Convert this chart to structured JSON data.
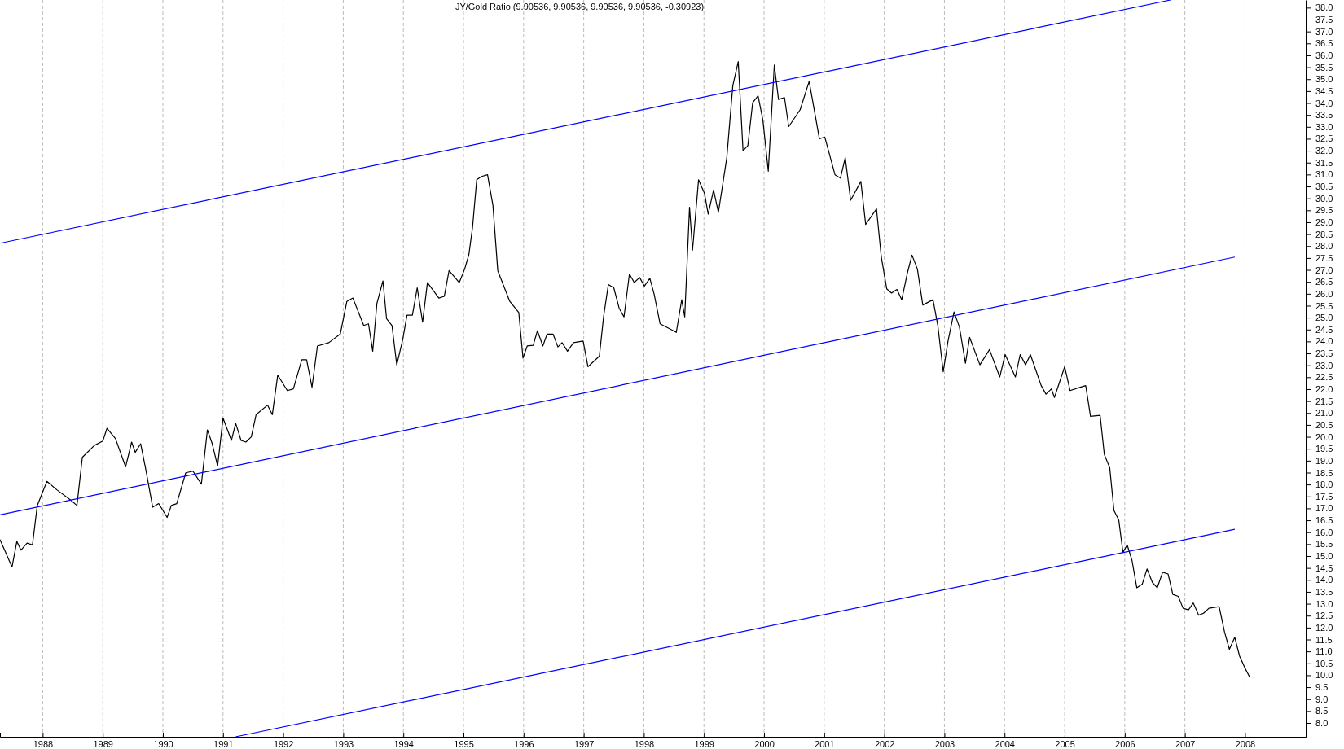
{
  "chart_data": {
    "type": "line",
    "title": "JY/Gold Ratio (9.90536, 9.90536, 9.90536, 9.90536, -0.30923)",
    "xlim": [
      1987.29,
      2009.01
    ],
    "ylim": [
      7.42,
      38.32
    ],
    "xticks": [
      1988,
      1989,
      1990,
      1991,
      1992,
      1993,
      1994,
      1995,
      1996,
      1997,
      1998,
      1999,
      2000,
      2001,
      2002,
      2003,
      2004,
      2005,
      2006,
      2007,
      2008
    ],
    "yticks": [
      {
        "value": 8,
        "label": "8.0"
      },
      {
        "value": 8.5,
        "label": "8.5"
      },
      {
        "value": 9,
        "label": "9.0"
      },
      {
        "value": 9.5,
        "label": "9.5"
      },
      {
        "value": 10,
        "label": "10.0"
      },
      {
        "value": 10.5,
        "label": "10.5"
      },
      {
        "value": 11,
        "label": "11.0"
      },
      {
        "value": 11.5,
        "label": "11.5"
      },
      {
        "value": 12,
        "label": "12.0"
      },
      {
        "value": 12.5,
        "label": "12.5"
      },
      {
        "value": 13,
        "label": "13.0"
      },
      {
        "value": 13.5,
        "label": "13.5"
      },
      {
        "value": 14,
        "label": "14.0"
      },
      {
        "value": 14.5,
        "label": "14.5"
      },
      {
        "value": 15,
        "label": "15.0"
      },
      {
        "value": 15.5,
        "label": "15.5"
      },
      {
        "value": 16,
        "label": "16.0"
      },
      {
        "value": 16.5,
        "label": "16.5"
      },
      {
        "value": 17,
        "label": "17.0"
      },
      {
        "value": 17.5,
        "label": "17.5"
      },
      {
        "value": 18,
        "label": "18.0"
      },
      {
        "value": 18.5,
        "label": "18.5"
      },
      {
        "value": 19,
        "label": "19.0"
      },
      {
        "value": 19.5,
        "label": "19.5"
      },
      {
        "value": 20,
        "label": "20.0"
      },
      {
        "value": 20.5,
        "label": "20.5"
      },
      {
        "value": 21,
        "label": "21.0"
      },
      {
        "value": 21.5,
        "label": "21.5"
      },
      {
        "value": 22,
        "label": "22.0"
      },
      {
        "value": 22.5,
        "label": "22.5"
      },
      {
        "value": 23,
        "label": "23.0"
      },
      {
        "value": 23.5,
        "label": "23.5"
      },
      {
        "value": 24,
        "label": "24.0"
      },
      {
        "value": 24.5,
        "label": "24.5"
      },
      {
        "value": 25,
        "label": "25.0"
      },
      {
        "value": 25.5,
        "label": "25.5"
      },
      {
        "value": 26,
        "label": "26.0"
      },
      {
        "value": 26.5,
        "label": "26.5"
      },
      {
        "value": 27,
        "label": "27.0"
      },
      {
        "value": 27.5,
        "label": "27.5"
      },
      {
        "value": 28,
        "label": "28.0"
      },
      {
        "value": 28.5,
        "label": "28.5"
      },
      {
        "value": 29,
        "label": "29.0"
      },
      {
        "value": 29.5,
        "label": "29.5"
      },
      {
        "value": 30,
        "label": "30.0"
      },
      {
        "value": 30.5,
        "label": "30.5"
      },
      {
        "value": 31,
        "label": "31.0"
      },
      {
        "value": 31.5,
        "label": "31.5"
      },
      {
        "value": 32,
        "label": "32.0"
      },
      {
        "value": 32.5,
        "label": "32.5"
      },
      {
        "value": 33,
        "label": "33.0"
      },
      {
        "value": 33.5,
        "label": "33.5"
      },
      {
        "value": 34,
        "label": "34.0"
      },
      {
        "value": 34.5,
        "label": "34.5"
      },
      {
        "value": 35,
        "label": "35.0"
      },
      {
        "value": 35.5,
        "label": "35.5"
      },
      {
        "value": 36,
        "label": "36.0"
      },
      {
        "value": 36.5,
        "label": "36.5"
      },
      {
        "value": 37,
        "label": "37.0"
      },
      {
        "value": 37.5,
        "label": "37.5"
      },
      {
        "value": 38,
        "label": "38.0"
      }
    ],
    "grid": "x",
    "marker": "none",
    "line_style": "solid",
    "series": [
      {
        "color": "#000000",
        "x": [
          1987.29,
          1987.49,
          1987.57,
          1987.64,
          1987.74,
          1987.83,
          1987.91,
          1988.07,
          1988.24,
          1988.47,
          1988.57,
          1988.66,
          1988.86,
          1989.0,
          1989.07,
          1989.21,
          1989.38,
          1989.48,
          1989.54,
          1989.63,
          1989.71,
          1989.83,
          1989.93,
          1990.07,
          1990.14,
          1990.23,
          1990.38,
          1990.5,
          1990.64,
          1990.74,
          1990.82,
          1990.91,
          1991.0,
          1991.14,
          1991.21,
          1991.3,
          1991.38,
          1991.47,
          1991.55,
          1991.74,
          1991.82,
          1991.91,
          1992.07,
          1992.17,
          1992.31,
          1992.39,
          1992.48,
          1992.57,
          1992.76,
          1992.95,
          1993.06,
          1993.16,
          1993.34,
          1993.42,
          1993.49,
          1993.56,
          1993.66,
          1993.72,
          1993.81,
          1993.89,
          1993.99,
          1994.06,
          1994.15,
          1994.23,
          1994.32,
          1994.4,
          1994.59,
          1994.68,
          1994.76,
          1994.93,
          1995.02,
          1995.09,
          1995.15,
          1995.22,
          1995.3,
          1995.4,
          1995.49,
          1995.57,
          1995.77,
          1995.92,
          1995.99,
          1996.06,
          1996.16,
          1996.23,
          1996.32,
          1996.39,
          1996.49,
          1996.57,
          1996.64,
          1996.73,
          1996.83,
          1996.99,
          1997.07,
          1997.26,
          1997.33,
          1997.41,
          1997.5,
          1997.59,
          1997.67,
          1997.76,
          1997.84,
          1997.93,
          1998.01,
          1998.1,
          1998.17,
          1998.27,
          1998.46,
          1998.54,
          1998.63,
          1998.68,
          1998.76,
          1998.81,
          1998.91,
          1999.01,
          1999.07,
          1999.16,
          1999.24,
          1999.38,
          1999.48,
          1999.57,
          1999.65,
          1999.73,
          1999.81,
          1999.9,
          1999.98,
          2000.07,
          2000.17,
          2000.24,
          2000.34,
          2000.41,
          2000.6,
          2000.75,
          2000.92,
          2001.01,
          2001.18,
          2001.27,
          2001.35,
          2001.44,
          2001.61,
          2001.69,
          2001.87,
          2001.95,
          2002.04,
          2002.12,
          2002.21,
          2002.29,
          2002.38,
          2002.46,
          2002.55,
          2002.64,
          2002.81,
          2002.89,
          2002.98,
          2003.06,
          2003.16,
          2003.25,
          2003.35,
          2003.42,
          2003.59,
          2003.75,
          2003.92,
          2004.01,
          2004.18,
          2004.26,
          2004.35,
          2004.43,
          2004.61,
          2004.69,
          2004.78,
          2004.83,
          2005.0,
          2005.09,
          2005.26,
          2005.35,
          2005.43,
          2005.59,
          2005.66,
          2005.75,
          2005.82,
          2005.9,
          2005.97,
          2006.04,
          2006.12,
          2006.2,
          2006.29,
          2006.37,
          2006.46,
          2006.54,
          2006.63,
          2006.72,
          2006.8,
          2006.89,
          2006.97,
          2007.06,
          2007.14,
          2007.23,
          2007.31,
          2007.4,
          2007.57,
          2007.66,
          2007.74,
          2007.83,
          2007.91,
          2008.0,
          2008.08
        ],
        "values": [
          15.69,
          14.54,
          15.61,
          15.25,
          15.54,
          15.47,
          17.12,
          18.13,
          17.77,
          17.34,
          17.12,
          19.14,
          19.64,
          19.82,
          20.36,
          19.93,
          18.74,
          19.78,
          19.35,
          19.71,
          18.7,
          17.05,
          17.2,
          16.62,
          17.12,
          17.2,
          18.49,
          18.56,
          18.02,
          20.29,
          19.71,
          18.78,
          20.79,
          19.85,
          20.57,
          19.85,
          19.78,
          20.0,
          20.93,
          21.33,
          20.93,
          22.59,
          21.94,
          22.01,
          23.23,
          23.23,
          22.08,
          23.81,
          23.95,
          24.31,
          25.68,
          25.82,
          24.67,
          24.74,
          23.59,
          25.6,
          26.54,
          24.96,
          24.67,
          23.02,
          24.09,
          25.1,
          25.1,
          26.25,
          24.81,
          26.47,
          25.82,
          25.89,
          26.97,
          26.47,
          27.04,
          27.65,
          28.77,
          30.78,
          30.92,
          30.99,
          29.7,
          26.97,
          25.68,
          25.21,
          23.3,
          23.81,
          23.84,
          24.45,
          23.81,
          24.31,
          24.31,
          23.77,
          23.95,
          23.59,
          23.95,
          24.02,
          22.94,
          23.38,
          25.03,
          26.39,
          26.25,
          25.39,
          25.03,
          26.83,
          26.47,
          26.68,
          26.32,
          26.65,
          26.0,
          24.74,
          24.49,
          24.38,
          25.75,
          25.03,
          29.63,
          27.83,
          30.78,
          30.2,
          29.34,
          30.35,
          29.41,
          31.71,
          34.73,
          35.74,
          32.0,
          32.21,
          34.01,
          34.3,
          33.29,
          31.14,
          35.59,
          34.15,
          34.23,
          33.01,
          33.72,
          34.91,
          32.5,
          32.57,
          30.99,
          30.85,
          31.71,
          29.92,
          30.71,
          28.91,
          29.56,
          27.54,
          26.21,
          26.03,
          26.18,
          25.75,
          26.83,
          27.62,
          27.04,
          25.53,
          25.75,
          24.67,
          22.73,
          24.02,
          25.24,
          24.6,
          23.09,
          24.17,
          23.02,
          23.66,
          22.51,
          23.45,
          22.51,
          23.45,
          23.02,
          23.45,
          22.15,
          21.79,
          22.01,
          21.65,
          22.94,
          21.94,
          22.08,
          22.15,
          20.86,
          20.9,
          19.26,
          18.7,
          16.91,
          16.51,
          15.15,
          15.47,
          14.82,
          13.67,
          13.82,
          14.46,
          13.89,
          13.67,
          14.32,
          14.25,
          13.39,
          13.31,
          12.81,
          12.74,
          13.03,
          12.52,
          12.6,
          12.81,
          12.88,
          11.81,
          11.09,
          11.59,
          10.8,
          10.3,
          9.91
        ]
      },
      {
        "color": "#0000ff",
        "x": [
          1987.29,
          2006.76
        ],
        "values": [
          28.12,
          38.32
        ]
      },
      {
        "color": "#0000ff",
        "x": [
          1987.29,
          2007.83
        ],
        "values": [
          16.73,
          27.54
        ]
      },
      {
        "color": "#0000ff",
        "x": [
          1991.21,
          2007.83
        ],
        "values": [
          7.42,
          16.12
        ]
      }
    ]
  }
}
